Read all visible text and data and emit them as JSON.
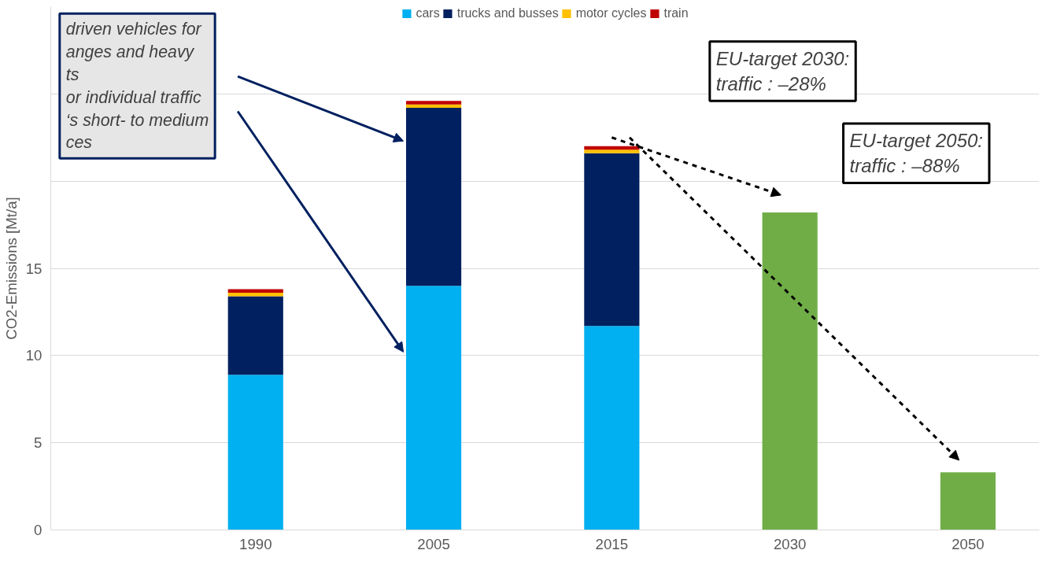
{
  "chart_data": {
    "type": "bar",
    "stacked": true,
    "categories": [
      "1990",
      "2005",
      "2015",
      "2030",
      "2050"
    ],
    "series": [
      {
        "name": "cars",
        "color": "#00b0f0",
        "values": [
          8.9,
          14.0,
          11.7,
          null,
          null
        ]
      },
      {
        "name": "trucks and busses",
        "color": "#002060",
        "values": [
          4.5,
          10.2,
          9.9,
          null,
          null
        ]
      },
      {
        "name": "motor cycles",
        "color": "#ffc000",
        "values": [
          0.2,
          0.2,
          0.2,
          null,
          null
        ]
      },
      {
        "name": "train",
        "color": "#c00000",
        "values": [
          0.2,
          0.2,
          0.2,
          null,
          null
        ]
      },
      {
        "color": "#70ad47",
        "values": [
          null,
          null,
          null,
          18.2,
          3.3
        ]
      }
    ],
    "ylabel": "CO2-Emissions [Mt/a]",
    "ylim": [
      0,
      30
    ],
    "yticks": [
      0,
      5,
      10,
      15,
      {
        "value": 20,
        "label": null
      },
      {
        "value": 25,
        "label": null
      }
    ],
    "grid": "y",
    "legend": "top",
    "annotations": [
      "driven vehicles for\nanges and heavy\nts\nor individual traffic\n‘s short- to medium\nces",
      "EU-target 2030:\ntraffic : –28%",
      "EU-target 2050:\ntraffic : –88%"
    ]
  }
}
